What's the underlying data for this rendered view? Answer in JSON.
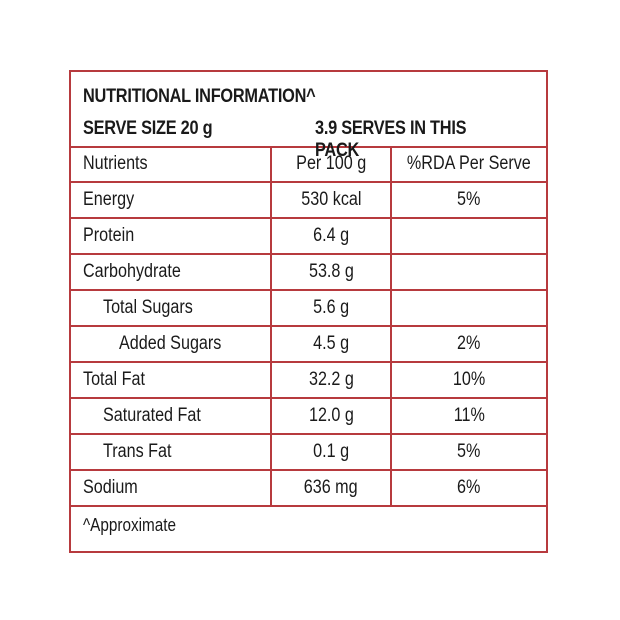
{
  "header": {
    "title": "NUTRITIONAL INFORMATION^",
    "serve_size": "SERVE SIZE 20 g",
    "serves_in_pack": "3.9 SERVES IN THIS PACK"
  },
  "table": {
    "columns": [
      "Nutrients",
      "Per 100 g",
      "%RDA Per Serve"
    ],
    "rows": [
      {
        "nutrient": "Energy",
        "per100": "530 kcal",
        "rda": "5%"
      },
      {
        "nutrient": "Protein",
        "per100": "6.4 g",
        "rda": ""
      },
      {
        "nutrient": "Carbohydrate",
        "per100": "53.8 g",
        "rda": ""
      },
      {
        "nutrient": "Total Sugars",
        "per100": "5.6 g",
        "rda": ""
      },
      {
        "nutrient": "Added Sugars",
        "per100": "4.5 g",
        "rda": "2%"
      },
      {
        "nutrient": "Total Fat",
        "per100": "32.2 g",
        "rda": "10%"
      },
      {
        "nutrient": "Saturated Fat",
        "per100": "12.0 g",
        "rda": "11%"
      },
      {
        "nutrient": "Trans Fat",
        "per100": "0.1 g",
        "rda": "5%"
      },
      {
        "nutrient": "Sodium",
        "per100": "636 mg",
        "rda": "6%"
      }
    ]
  },
  "footnote": "^Approximate",
  "colors": {
    "border": "#b73a3e",
    "text": "#1a1a1a"
  }
}
